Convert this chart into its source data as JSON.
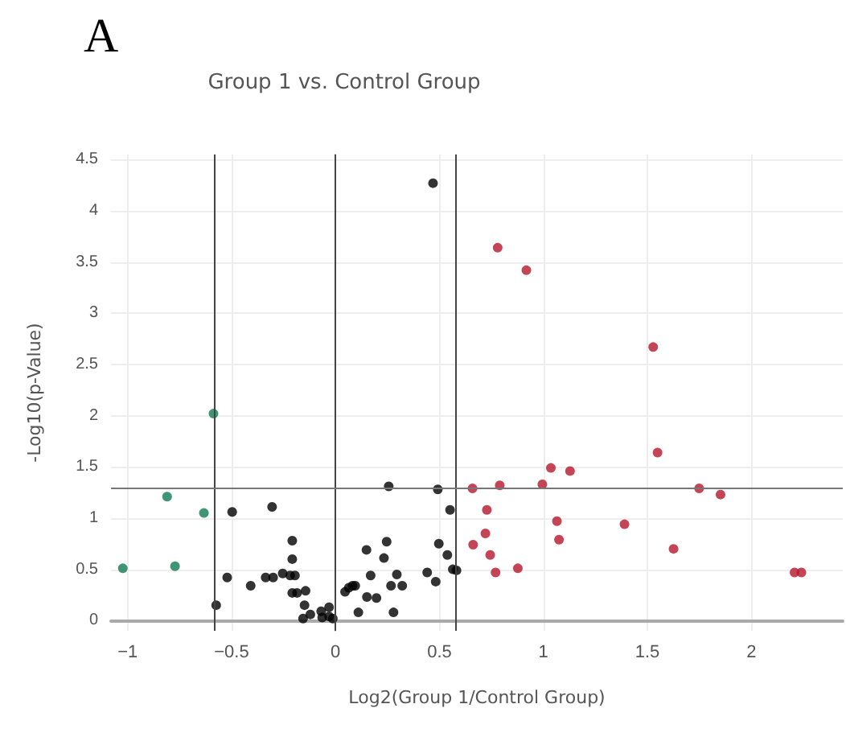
{
  "chart_data": {
    "type": "scatter",
    "title": "Group 1 vs. Control Group",
    "xlabel": "Log2(Group 1/Control Group)",
    "ylabel": "-Log10(p-Value)",
    "annotations": [
      "A"
    ],
    "series": [
      {
        "color": "#117a55",
        "x": [
          -0.587,
          -0.81,
          -0.633,
          -1.023,
          -0.772
        ],
        "values": [
          2.02,
          1.21,
          1.05,
          0.51,
          0.53
        ]
      },
      {
        "color": "#000000",
        "x": [
          0.469,
          0.256,
          0.492,
          0.551,
          -0.497,
          -0.305,
          -0.208,
          -0.208,
          0.246,
          0.149,
          0.233,
          0.497,
          0.538,
          -0.521,
          -0.408,
          -0.336,
          -0.3,
          -0.254,
          -0.218,
          -0.195,
          -0.208,
          -0.185,
          -0.144,
          -0.574,
          -0.149,
          -0.121,
          -0.156,
          -0.069,
          -0.064,
          -0.031,
          -0.031,
          -0.013,
          0.046,
          0.064,
          0.082,
          0.095,
          0.169,
          0.151,
          0.197,
          0.267,
          0.295,
          0.321,
          0.11,
          0.279,
          0.441,
          0.482,
          0.564,
          0.582
        ],
        "values": [
          4.27,
          1.31,
          1.28,
          1.08,
          1.06,
          1.11,
          0.78,
          0.6,
          0.77,
          0.69,
          0.61,
          0.75,
          0.64,
          0.42,
          0.34,
          0.42,
          0.42,
          0.46,
          0.44,
          0.44,
          0.27,
          0.27,
          0.29,
          0.15,
          0.15,
          0.06,
          0.02,
          0.09,
          0.03,
          0.04,
          0.13,
          0.02,
          0.28,
          0.32,
          0.34,
          0.34,
          0.44,
          0.23,
          0.22,
          0.34,
          0.45,
          0.34,
          0.08,
          0.08,
          0.47,
          0.38,
          0.5,
          0.49
        ]
      },
      {
        "color": "#b5172b",
        "x": [
          0.78,
          0.918,
          1.528,
          1.549,
          1.036,
          1.128,
          0.995,
          0.79,
          0.659,
          1.749,
          1.852,
          0.728,
          1.065,
          1.39,
          0.721,
          1.075,
          0.662,
          1.626,
          0.744,
          0.77,
          0.877,
          2.208,
          2.241
        ],
        "values": [
          3.64,
          3.42,
          2.67,
          1.64,
          1.49,
          1.46,
          1.33,
          1.32,
          1.29,
          1.29,
          1.23,
          1.08,
          0.97,
          0.94,
          0.85,
          0.79,
          0.74,
          0.7,
          0.64,
          0.47,
          0.51,
          0.47,
          0.47
        ]
      }
    ],
    "xlim": [
      -1.08,
      2.44
    ],
    "ylim": [
      -0.1,
      4.55
    ],
    "xticks": [
      {
        "value": -1,
        "label": "−1"
      },
      {
        "value": -0.5,
        "label": "−0.5"
      },
      0,
      0.5,
      1,
      1.5,
      2
    ],
    "yticks": [
      0,
      0.5,
      1,
      1.5,
      2,
      2.5,
      3,
      3.5,
      4,
      4.5
    ],
    "ref_lines": [
      {
        "axis": "x",
        "value": -0.585,
        "color": "#444444"
      },
      {
        "axis": "x",
        "value": 0,
        "color": "#444444"
      },
      {
        "axis": "x",
        "value": 0.585,
        "color": "#444444"
      },
      {
        "axis": "y",
        "value": 1.3,
        "color": "#777777"
      }
    ],
    "grid": true,
    "marker": "circle"
  }
}
